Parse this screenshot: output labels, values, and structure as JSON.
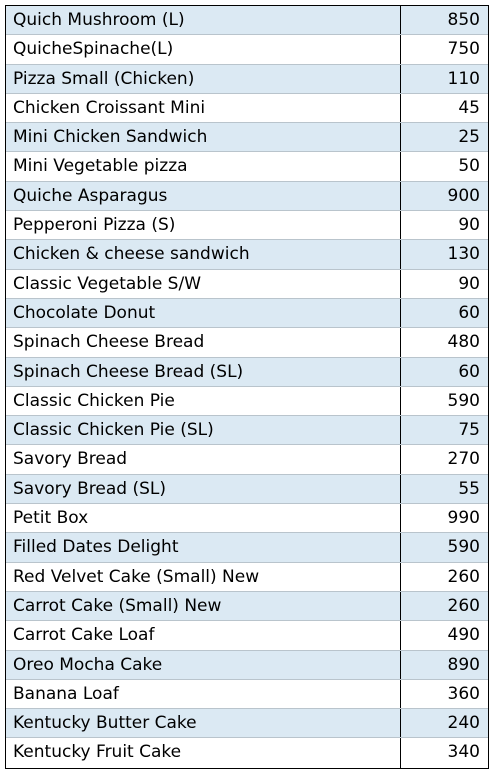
{
  "items": [
    {
      "name": "Quich Mushroom (L)",
      "price": "850"
    },
    {
      "name": "QuicheSpinache(L)",
      "price": "750"
    },
    {
      "name": "Pizza Small (Chicken)",
      "price": "110"
    },
    {
      "name": "Chicken Croissant Mini",
      "price": "45"
    },
    {
      "name": "Mini Chicken Sandwich",
      "price": "25"
    },
    {
      "name": "Mini Vegetable pizza",
      "price": "50"
    },
    {
      "name": "Quiche Asparagus",
      "price": "900"
    },
    {
      "name": "Pepperoni Pizza (S)",
      "price": "90"
    },
    {
      "name": "Chicken & cheese sandwich",
      "price": "130"
    },
    {
      "name": "Classic Vegetable S/W",
      "price": "90"
    },
    {
      "name": "Chocolate Donut",
      "price": "60"
    },
    {
      "name": "Spinach Cheese Bread",
      "price": "480"
    },
    {
      "name": "Spinach Cheese Bread (SL)",
      "price": "60"
    },
    {
      "name": "Classic Chicken Pie",
      "price": "590"
    },
    {
      "name": "Classic Chicken Pie (SL)",
      "price": "75"
    },
    {
      "name": "Savory Bread",
      "price": "270"
    },
    {
      "name": "Savory Bread (SL)",
      "price": "55"
    },
    {
      "name": "Petit Box",
      "price": "990"
    },
    {
      "name": "Filled Dates Delight",
      "price": "590"
    },
    {
      "name": "Red Velvet Cake (Small) New",
      "price": "260"
    },
    {
      "name": "Carrot Cake (Small) New",
      "price": "260"
    },
    {
      "name": "Carrot Cake Loaf",
      "price": "490"
    },
    {
      "name": "Oreo Mocha Cake",
      "price": "890"
    },
    {
      "name": "Banana Loaf",
      "price": "360"
    },
    {
      "name": "Kentucky Butter Cake",
      "price": "240"
    },
    {
      "name": "Kentucky Fruit Cake",
      "price": "340"
    }
  ],
  "colors": {
    "stripe": "#dbe9f3",
    "border": "#000000"
  }
}
